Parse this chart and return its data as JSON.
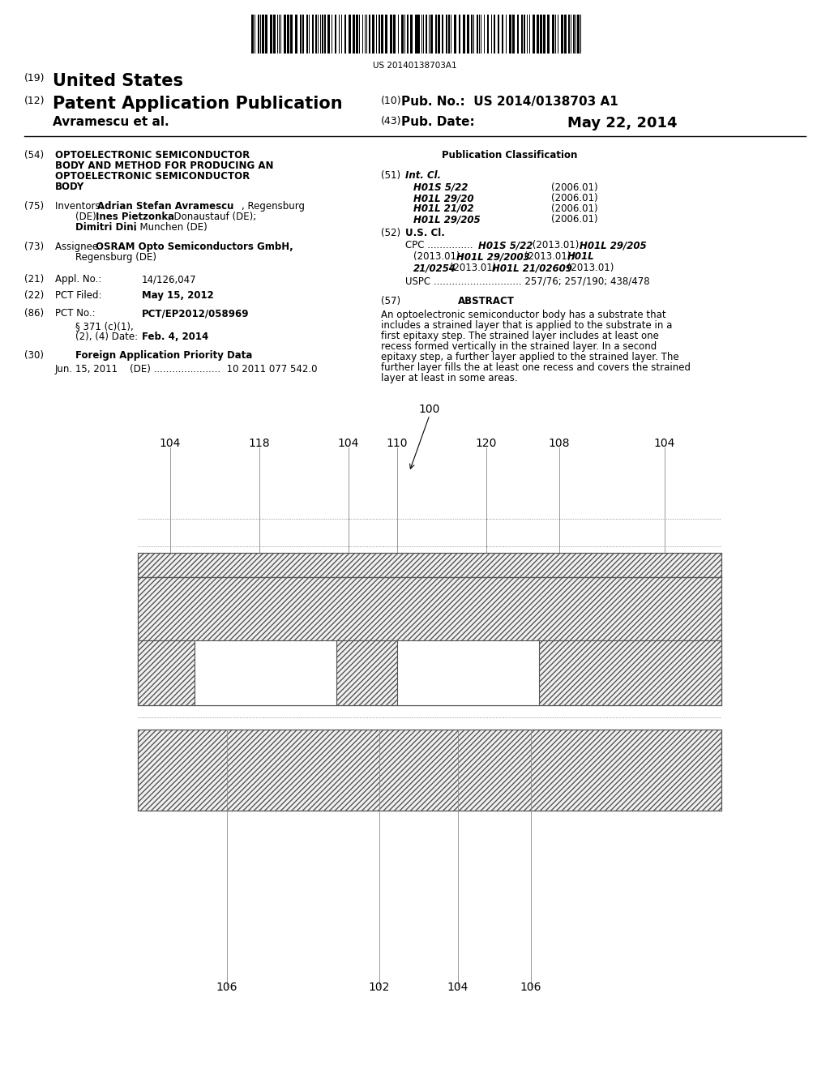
{
  "title_barcode": "US 20140138703A1",
  "header_line1": "(19) United States",
  "header_line2": "(12) Patent Application Publication",
  "header_right1": "(10) Pub. No.: US 2014/0138703 A1",
  "header_author": "Avramescu et al.",
  "header_right2": "(43) Pub. Date:",
  "header_date": "May 22, 2014",
  "field54_label": "(54)",
  "field54_text": "OPTOELECTRONIC SEMICONDUCTOR\nBODY AND METHOD FOR PRODUCING AN\nOPTOELECTRONIC SEMICONDUCTOR\nBODY",
  "field75_label": "(75)",
  "field75_text": "Inventors:  Adrian Stefan Avramescu, Regensburg\n(DE); Ines Pietzonka, Donaustauf (DE);\nDimitri Dini, Munchen (DE)",
  "field73_label": "(73)",
  "field73_text": "Assignee:  OSRAM Opto Semiconductors GmbH,\nRegensburg (DE)",
  "field21_label": "(21)",
  "field21_text": "Appl. No.:         14/126,047",
  "field22_label": "(22)",
  "field22_text": "PCT Filed:         May 15, 2012",
  "field86_label": "(86)",
  "field86_text": "PCT No.:          PCT/EP2012/058969\n§ 371 (c)(1),\n(2), (4) Date:   Feb. 4, 2014",
  "field30_label": "(30)",
  "field30_text": "Foreign Application Priority Data",
  "field30_data": "Jun. 15, 2011    (DE) ........................  10 2011 077 542.0",
  "pub_class_header": "Publication Classification",
  "field51_label": "(51)",
  "field51_text": "Int. Cl.",
  "int_cl_lines": [
    [
      "H01S 5/22",
      "(2006.01)"
    ],
    [
      "H01L 29/20",
      "(2006.01)"
    ],
    [
      "H01L 21/02",
      "(2006.01)"
    ],
    [
      "H01L 29/205",
      "(2006.01)"
    ]
  ],
  "field52_label": "(52)",
  "field52_text": "U.S. Cl.",
  "cpc_text": "CPC ............... H01S 5/22 (2013.01); H01L 29/205\n(2013.01); H01L 29/2003 (2013.01); H01L\n21/0254 (2013.01); H01L 21/02609 (2013.01)",
  "uspc_text": "USPC ............................. 257/76; 257/190; 438/478",
  "field57_label": "(57)",
  "abstract_title": "ABSTRACT",
  "abstract_text": "An optoelectronic semiconductor body has a substrate that\nincludes a strained layer that is applied to the substrate in a\nfirst epitaxy step. The strained layer includes at least one\nrecess formed vertically in the strained layer. In a second\nepitaxy step, a further layer applied to the strained layer. The\nfurther layer fills the at least one recess and covers the strained\nlayer at least in some areas.",
  "diagram_label_100": "100",
  "diagram_labels_top": [
    "104",
    "118",
    "104",
    "110",
    "120",
    "108",
    "104"
  ],
  "diagram_labels_bottom": [
    "106",
    "102",
    "104",
    "106"
  ],
  "bg_color": "#ffffff",
  "line_color": "#555555",
  "hatch_color": "#888888"
}
